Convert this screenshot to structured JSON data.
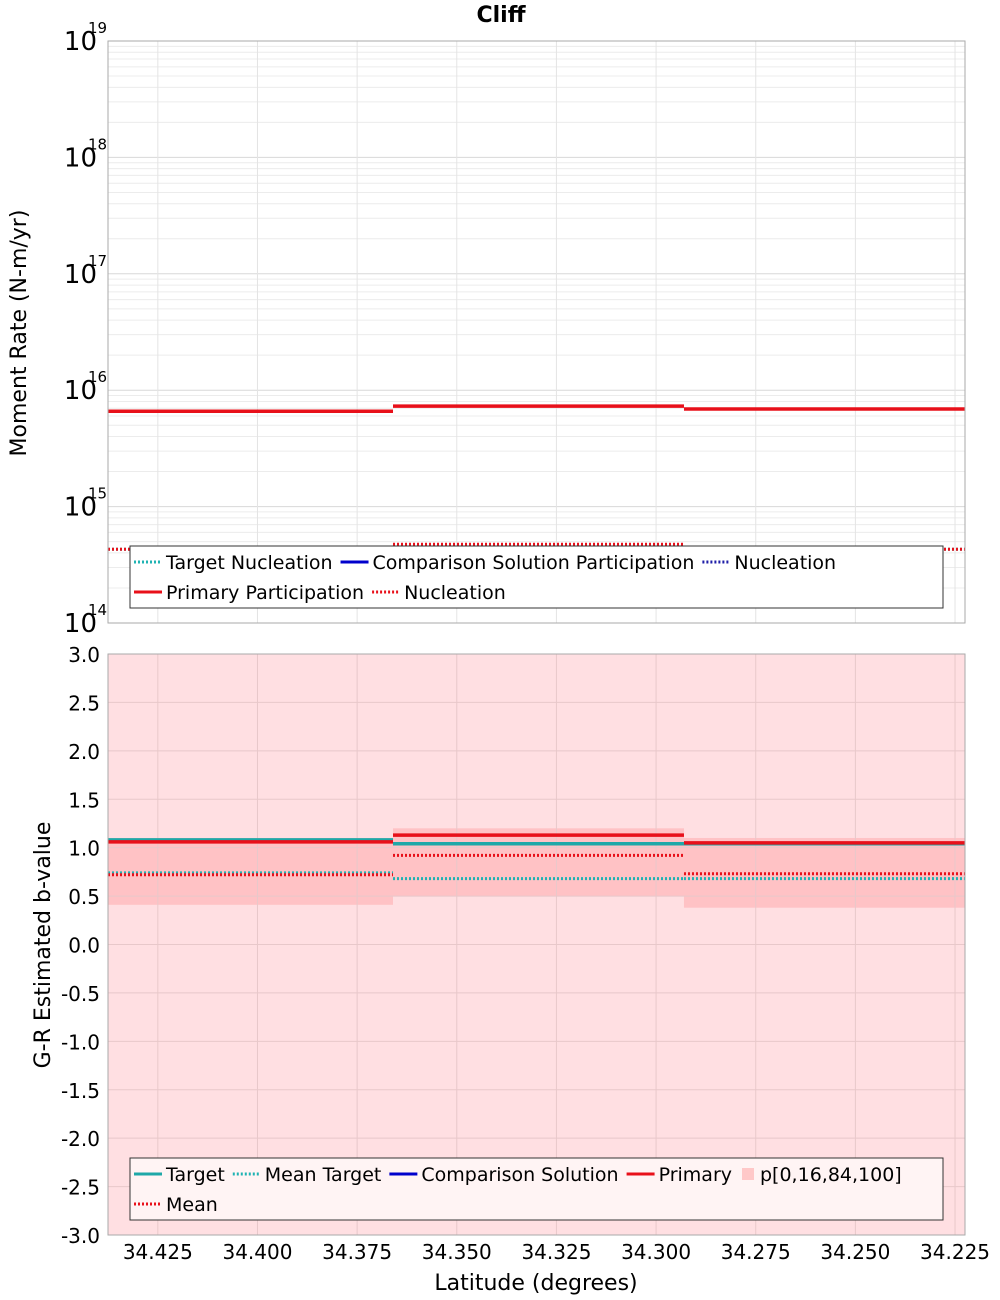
{
  "chart_data": [
    {
      "type": "line",
      "title": "Cliff",
      "ylabel": "Moment Rate (N-m/yr)",
      "xlabel": "",
      "y_scale": "log",
      "ylim": [
        100000000000000.0,
        1e+19
      ],
      "xlim": [
        34.4375,
        34.2225
      ],
      "x_reversed": true,
      "grid": true,
      "y_ticks": [
        {
          "base": "10",
          "exp": "14",
          "value": 100000000000000.0
        },
        {
          "base": "10",
          "exp": "15",
          "value": 1000000000000000.0
        },
        {
          "base": "10",
          "exp": "16",
          "value": 1e+16
        },
        {
          "base": "10",
          "exp": "17",
          "value": 1e+17
        },
        {
          "base": "10",
          "exp": "18",
          "value": 1e+18
        },
        {
          "base": "10",
          "exp": "19",
          "value": 1e+19
        }
      ],
      "x_bins": [
        [
          34.4375,
          34.366
        ],
        [
          34.366,
          34.293
        ],
        [
          34.293,
          34.2225
        ]
      ],
      "series": [
        {
          "name": "Target Nucleation",
          "style": "dotted",
          "color": "#1fb3b3",
          "values": [
            430000000000000.0,
            430000000000000.0,
            430000000000000.0
          ]
        },
        {
          "name": "Comparison Solution Participation",
          "style": "solid",
          "color": "#0000cc",
          "values": [
            null,
            null,
            null
          ]
        },
        {
          "name": "Nucleation",
          "style": "dotted",
          "color": "#1f1fa8",
          "values": [
            null,
            null,
            null
          ]
        },
        {
          "name": "Primary Participation",
          "style": "solid",
          "color": "#e8101a",
          "values": [
            6600000000000000.0,
            7300000000000000.0,
            6900000000000000.0
          ]
        },
        {
          "name": "Nucleation",
          "style": "dotted",
          "color": "#e8101a",
          "values": [
            430000000000000.0,
            475000000000000.0,
            430000000000000.0
          ]
        }
      ],
      "legend": "bottom-inside",
      "legend_rows": [
        [
          "Target Nucleation",
          "Comparison Solution Participation",
          "Nucleation"
        ],
        [
          "Primary Participation",
          "Nucleation"
        ]
      ]
    },
    {
      "type": "line",
      "title": "",
      "ylabel": "G-R Estimated b-value",
      "xlabel": "Latitude (degrees)",
      "ylim": [
        -3.0,
        3.0
      ],
      "xlim": [
        34.4375,
        34.2225
      ],
      "x_reversed": true,
      "grid": true,
      "y_ticks": [
        "3.0",
        "2.5",
        "2.0",
        "1.5",
        "1.0",
        "0.5",
        "0.0",
        "-0.5",
        "-1.0",
        "-1.5",
        "-2.0",
        "-2.5",
        "-3.0"
      ],
      "x_ticks": [
        "34.425",
        "34.400",
        "34.375",
        "34.350",
        "34.325",
        "34.300",
        "34.275",
        "34.250",
        "34.225"
      ],
      "x_bins": [
        [
          34.4375,
          34.366
        ],
        [
          34.366,
          34.293
        ],
        [
          34.293,
          34.2225
        ]
      ],
      "series": [
        {
          "name": "Target",
          "style": "solid",
          "color": "#1fa8a8",
          "values": [
            1.08,
            1.04,
            1.04
          ]
        },
        {
          "name": "Mean Target",
          "style": "dotted",
          "color": "#1fb3b3",
          "values": [
            0.74,
            0.68,
            0.68
          ]
        },
        {
          "name": "Comparison Solution",
          "style": "solid",
          "color": "#0000cc",
          "values": [
            null,
            null,
            null
          ]
        },
        {
          "name": "Primary",
          "style": "solid",
          "color": "#e8101a",
          "values": [
            1.06,
            1.13,
            1.05
          ]
        },
        {
          "name": "p[0,16,84,100]",
          "style": "band",
          "color": "#ffc8c8",
          "p0": [
            -3.0,
            -3.0,
            -3.0
          ],
          "p16": [
            0.41,
            0.5,
            0.38
          ],
          "p84": [
            1.1,
            1.2,
            1.1
          ],
          "p100": [
            3.0,
            3.0,
            3.0
          ]
        },
        {
          "name": "Mean",
          "style": "dotted",
          "color": "#e8101a",
          "values": [
            0.72,
            0.92,
            0.73
          ]
        }
      ],
      "legend": "bottom-inside",
      "legend_rows": [
        [
          "Target",
          "Mean Target",
          "Comparison Solution",
          "Primary",
          "p[0,16,84,100]"
        ],
        [
          "Mean"
        ]
      ]
    }
  ]
}
